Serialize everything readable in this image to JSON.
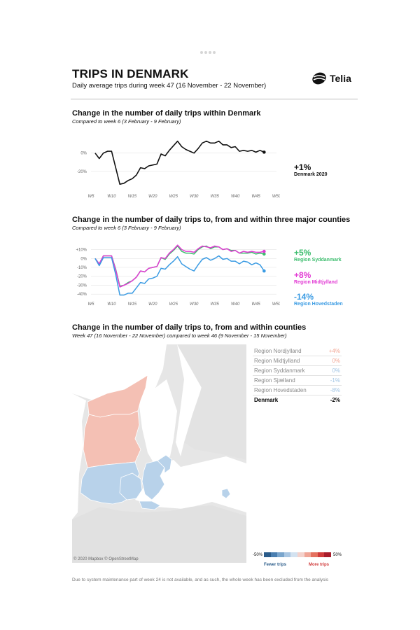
{
  "header": {
    "title": "TRIPS IN DENMARK",
    "subtitle": "Daily average trips during week 47 (16 November - 22 November)",
    "logo_text": "Telia"
  },
  "section1": {
    "title": "Change in the number of daily trips within Denmark",
    "subtitle": "Compared to week 6 (3 February - 9 February)",
    "callout_value": "+1%",
    "callout_label": "Denmark 2020"
  },
  "section2": {
    "title": "Change in the number of daily trips to, from and within three major counties",
    "subtitle": "Compared to week 6 (3 February - 9 February)",
    "callouts": [
      {
        "value": "+5%",
        "label": "Region Syddanmark",
        "color": "#3dbd6e"
      },
      {
        "value": "+8%",
        "label": "Region Midtjylland",
        "color": "#e23bd4"
      },
      {
        "value": "-14%",
        "label": "Region Hovedstaden",
        "color": "#3a9be3"
      }
    ]
  },
  "section3": {
    "title": "Change in the number of daily trips to, from and within counties",
    "subtitle": "Week 47 (16 November - 22 November) compared to week 46 (9 November - 15 November)",
    "map_credit": "© 2020 Mapbox © OpenStreetMap",
    "legend": {
      "min": "-50%",
      "max": "50%",
      "left_label": "Fewer trips",
      "right_label": "More trips",
      "colors": [
        "#2b5c8a",
        "#4a7fb0",
        "#7aa5cc",
        "#a9c6e2",
        "#d3e2f0",
        "#f4d2cc",
        "#f0a596",
        "#e4715f",
        "#d03b3b",
        "#a81c2b"
      ]
    },
    "regions": [
      {
        "name": "Region Nordjylland",
        "value": "+4%",
        "color": "#f2a593"
      },
      {
        "name": "Region Midtjylland",
        "value": "0%",
        "color": "#f2a593"
      },
      {
        "name": "Region Syddanmark",
        "value": "0%",
        "color": "#9fc3e3"
      },
      {
        "name": "Region Sjælland",
        "value": "-1%",
        "color": "#9fc3e3"
      },
      {
        "name": "Region Hovedstaden",
        "value": "-8%",
        "color": "#9fc3e3"
      }
    ],
    "total": {
      "name": "Denmark",
      "value": "-2%"
    }
  },
  "footnote": "Due to system maintenance part of week 24 is not available, and as such, the whole week has been excluded from the analysis",
  "chart_data": [
    {
      "type": "line",
      "title": "Change in the number of daily trips within Denmark",
      "xlabel": "",
      "ylabel": "",
      "x_ticks": [
        "W5",
        "W10",
        "W15",
        "W20",
        "W25",
        "W30",
        "W35",
        "W40",
        "W45",
        "W50"
      ],
      "y_ticks": [
        "0%",
        "-20%"
      ],
      "xlim": [
        5,
        50
      ],
      "ylim": [
        -40,
        12
      ],
      "grid": true,
      "series": [
        {
          "name": "Denmark 2020",
          "color": "#111111",
          "x": [
            6,
            7,
            8,
            9,
            10,
            11,
            12,
            13,
            14,
            15,
            16,
            17,
            18,
            19,
            20,
            21,
            22,
            23,
            24,
            25,
            26,
            27,
            28,
            29,
            30,
            31,
            32,
            33,
            34,
            35,
            36,
            37,
            38,
            39,
            40,
            41,
            42,
            43,
            44,
            45,
            46,
            47
          ],
          "y": [
            0,
            -6,
            0,
            2,
            2,
            -16,
            -34,
            -33,
            -30,
            -28,
            -24,
            -16,
            -17,
            -14,
            -13,
            -12,
            -1,
            -3,
            3,
            8,
            13,
            7,
            4,
            2,
            0,
            5,
            11,
            13,
            11,
            11,
            13,
            9,
            9,
            6,
            7,
            2,
            3,
            2,
            3,
            1,
            3,
            1
          ]
        }
      ]
    },
    {
      "type": "line",
      "title": "Change in the number of daily trips to, from and within three major counties",
      "xlabel": "",
      "ylabel": "",
      "x_ticks": [
        "W5",
        "W10",
        "W15",
        "W20",
        "W25",
        "W30",
        "W35",
        "W40",
        "W45",
        "W50"
      ],
      "y_ticks": [
        "+10%",
        "0%",
        "-10%",
        "-20%",
        "-30%",
        "-40%"
      ],
      "xlim": [
        5,
        50
      ],
      "ylim": [
        -43,
        12
      ],
      "grid": true,
      "series": [
        {
          "name": "Region Syddanmark",
          "color": "#3dbd6e",
          "x": [
            6,
            7,
            8,
            9,
            10,
            11,
            12,
            13,
            14,
            15,
            16,
            17,
            18,
            19,
            20,
            21,
            22,
            23,
            24,
            25,
            26,
            27,
            28,
            29,
            30,
            31,
            32,
            33,
            34,
            35,
            36,
            37,
            38,
            39,
            40,
            41,
            42,
            43,
            44,
            45,
            46,
            47
          ],
          "y": [
            0,
            -6,
            3,
            3,
            3,
            -12,
            -31,
            -30,
            -27,
            -25,
            -21,
            -14,
            -15,
            -11,
            -10,
            -9,
            1,
            -1,
            5,
            9,
            14,
            8,
            6,
            6,
            5,
            10,
            13,
            14,
            11,
            13,
            13,
            10,
            11,
            9,
            9,
            6,
            6,
            6,
            7,
            5,
            6,
            5
          ]
        },
        {
          "name": "Region Midtjylland",
          "color": "#e23bd4",
          "x": [
            6,
            7,
            8,
            9,
            10,
            11,
            12,
            13,
            14,
            15,
            16,
            17,
            18,
            19,
            20,
            21,
            22,
            23,
            24,
            25,
            26,
            27,
            28,
            29,
            30,
            31,
            32,
            33,
            34,
            35,
            36,
            37,
            38,
            39,
            40,
            41,
            42,
            43,
            44,
            45,
            46,
            47
          ],
          "y": [
            0,
            -6,
            3,
            3,
            3,
            -13,
            -32,
            -30,
            -28,
            -25,
            -21,
            -14,
            -15,
            -11,
            -10,
            -9,
            1,
            0,
            6,
            10,
            15,
            10,
            8,
            8,
            7,
            11,
            14,
            13,
            12,
            14,
            13,
            10,
            11,
            8,
            9,
            6,
            8,
            7,
            8,
            7,
            7,
            8
          ]
        },
        {
          "name": "Region Hovedstaden",
          "color": "#3a9be3",
          "x": [
            6,
            7,
            8,
            9,
            10,
            11,
            12,
            13,
            14,
            15,
            16,
            17,
            18,
            19,
            20,
            21,
            22,
            23,
            24,
            25,
            26,
            27,
            28,
            29,
            30,
            31,
            32,
            33,
            34,
            35,
            36,
            37,
            38,
            39,
            40,
            41,
            42,
            43,
            44,
            45,
            46,
            47
          ],
          "y": [
            0,
            -8,
            1,
            1,
            1,
            -18,
            -41,
            -41,
            -39,
            -39,
            -33,
            -27,
            -28,
            -23,
            -22,
            -20,
            -11,
            -12,
            -7,
            -3,
            2,
            -6,
            -9,
            -12,
            -14,
            -7,
            -1,
            1,
            -2,
            0,
            3,
            -1,
            0,
            -3,
            -3,
            -6,
            -3,
            -4,
            -7,
            -5,
            -7,
            -14
          ]
        }
      ]
    }
  ]
}
